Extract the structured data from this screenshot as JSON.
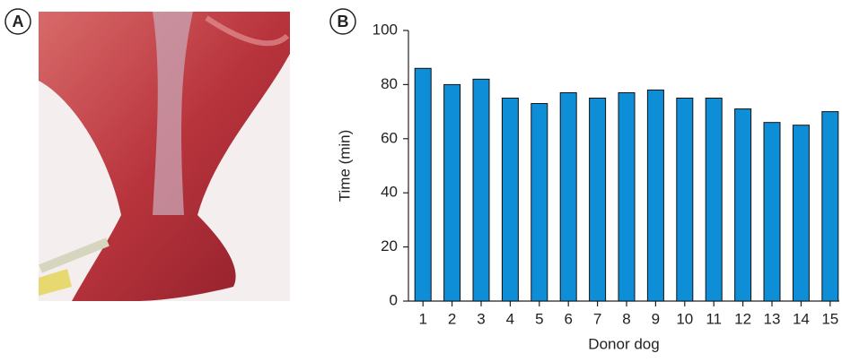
{
  "panel_labels": {
    "photo": "A",
    "chart": "B"
  },
  "chart_data": {
    "type": "bar",
    "categories": [
      "1",
      "2",
      "3",
      "4",
      "5",
      "6",
      "7",
      "8",
      "9",
      "10",
      "11",
      "12",
      "13",
      "14",
      "15"
    ],
    "values": [
      86,
      80,
      82,
      75,
      73,
      77,
      75,
      77,
      78,
      75,
      75,
      71,
      66,
      65,
      70
    ],
    "color": "#0f8ed8",
    "x_label": "Donor dog",
    "y_label": "Time (min)",
    "ylim": [
      0,
      100
    ],
    "yticks": [
      0,
      20,
      40,
      60,
      80,
      100
    ],
    "grid": false
  }
}
